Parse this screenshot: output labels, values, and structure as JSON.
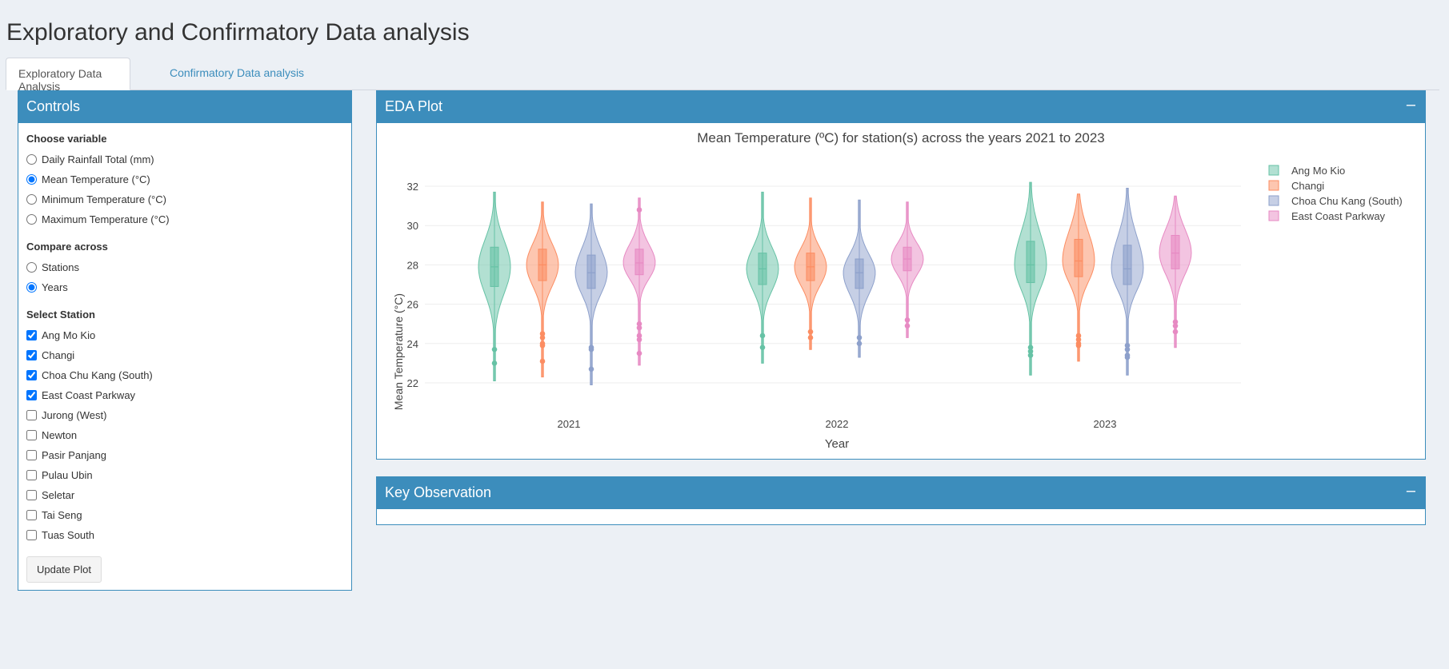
{
  "app": {
    "title": "Exploratory and Confirmatory Data analysis"
  },
  "tabs": [
    {
      "label": "Exploratory Data Analysis",
      "active": true
    },
    {
      "label": "Confirmatory Data analysis",
      "active": false
    }
  ],
  "controls": {
    "title": "Controls",
    "variable": {
      "label": "Choose variable",
      "options": [
        "Daily Rainfall Total (mm)",
        "Mean Temperature (°C)",
        "Minimum Temperature (°C)",
        "Maximum Temperature (°C)"
      ],
      "selected": "Mean Temperature (°C)"
    },
    "compare": {
      "label": "Compare across",
      "options": [
        "Stations",
        "Years"
      ],
      "selected": "Years"
    },
    "stations": {
      "label": "Select Station",
      "options": [
        {
          "name": "Ang Mo Kio",
          "checked": true
        },
        {
          "name": "Changi",
          "checked": true
        },
        {
          "name": "Choa Chu Kang (South)",
          "checked": true
        },
        {
          "name": "East Coast Parkway",
          "checked": true
        },
        {
          "name": "Jurong (West)",
          "checked": false
        },
        {
          "name": "Newton",
          "checked": false
        },
        {
          "name": "Pasir Panjang",
          "checked": false
        },
        {
          "name": "Pulau Ubin",
          "checked": false
        },
        {
          "name": "Seletar",
          "checked": false
        },
        {
          "name": "Tai Seng",
          "checked": false
        },
        {
          "name": "Tuas South",
          "checked": false
        }
      ]
    },
    "update_label": "Update Plot"
  },
  "eda_box": {
    "title": "EDA Plot",
    "collapse_icon": "minus-icon"
  },
  "key_box": {
    "title": "Key Observation",
    "collapse_icon": "minus-icon"
  },
  "colors": {
    "accent": "#3c8dbc",
    "background": "#ecf0f5"
  },
  "chart_data": {
    "type": "violin",
    "title": "Mean Temperature (ºC) for station(s) across the years 2021 to 2023",
    "xlabel": "Year",
    "ylabel": "Mean Temperature (°C)",
    "categories": [
      "2021",
      "2022",
      "2023"
    ],
    "ylim": [
      21.5,
      32.8
    ],
    "yticks": [
      22,
      24,
      26,
      28,
      30,
      32
    ],
    "grid": true,
    "legend_position": "top-right",
    "series": [
      {
        "name": "Ang Mo Kio",
        "color": "#66c2a5",
        "stats": [
          {
            "min": 22.1,
            "q1": 26.9,
            "median": 27.9,
            "q3": 28.9,
            "max": 31.7,
            "outliers": [
              23.7,
              23.0
            ]
          },
          {
            "min": 23.0,
            "q1": 27.0,
            "median": 27.8,
            "q3": 28.6,
            "max": 31.7,
            "outliers": [
              24.4,
              23.8
            ]
          },
          {
            "min": 22.4,
            "q1": 27.1,
            "median": 28.0,
            "q3": 29.2,
            "max": 32.2,
            "outliers": [
              23.8,
              23.6,
              23.4
            ]
          }
        ]
      },
      {
        "name": "Changi",
        "color": "#fc8d62",
        "stats": [
          {
            "min": 22.3,
            "q1": 27.2,
            "median": 28.0,
            "q3": 28.8,
            "max": 31.2,
            "outliers": [
              24.5,
              24.3,
              24.0,
              23.9,
              23.1
            ]
          },
          {
            "min": 23.7,
            "q1": 27.2,
            "median": 27.9,
            "q3": 28.6,
            "max": 31.4,
            "outliers": [
              24.6,
              24.3
            ]
          },
          {
            "min": 23.1,
            "q1": 27.4,
            "median": 28.2,
            "q3": 29.3,
            "max": 31.6,
            "outliers": [
              24.4,
              24.2,
              24.0,
              23.9
            ]
          }
        ]
      },
      {
        "name": "Choa Chu Kang (South)",
        "color": "#8da0cb",
        "stats": [
          {
            "min": 21.9,
            "q1": 26.8,
            "median": 27.6,
            "q3": 28.5,
            "max": 31.1,
            "outliers": [
              23.8,
              23.7,
              22.7
            ]
          },
          {
            "min": 23.3,
            "q1": 26.8,
            "median": 27.6,
            "q3": 28.3,
            "max": 31.3,
            "outliers": [
              24.3,
              24.0
            ]
          },
          {
            "min": 22.4,
            "q1": 27.0,
            "median": 27.8,
            "q3": 29.0,
            "max": 31.9,
            "outliers": [
              23.9,
              23.7,
              23.4,
              23.3
            ]
          }
        ]
      },
      {
        "name": "East Coast Parkway",
        "color": "#e78ac3",
        "stats": [
          {
            "min": 22.9,
            "q1": 27.5,
            "median": 28.1,
            "q3": 28.8,
            "max": 31.4,
            "outliers": [
              30.8,
              25.0,
              24.8,
              24.4,
              24.2,
              23.5
            ]
          },
          {
            "min": 24.3,
            "q1": 27.7,
            "median": 28.3,
            "q3": 28.9,
            "max": 31.2,
            "outliers": [
              25.2,
              24.9
            ]
          },
          {
            "min": 23.8,
            "q1": 27.8,
            "median": 28.6,
            "q3": 29.5,
            "max": 31.5,
            "outliers": [
              25.1,
              24.9,
              24.6
            ]
          }
        ]
      }
    ]
  }
}
